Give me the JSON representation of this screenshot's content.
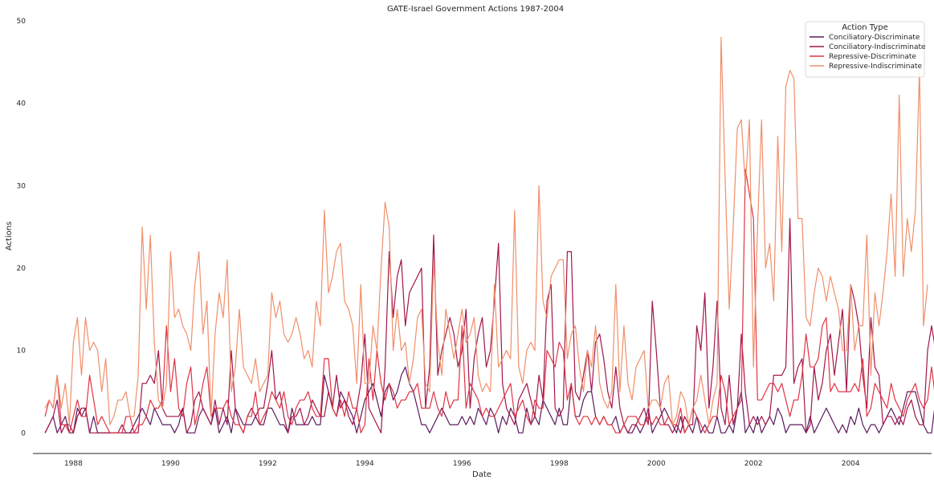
{
  "chart_data": {
    "type": "line",
    "title": "GATE-Israel Government Actions 1987-2004",
    "xlabel": "Date",
    "ylabel": "Actions",
    "x_start": "1987-06",
    "x_end": "2004-12",
    "xlim": [
      "1987-03",
      "2005-09"
    ],
    "ylim": [
      -2.5,
      50
    ],
    "x_ticks": [
      "1988",
      "1990",
      "1992",
      "1994",
      "1996",
      "1998",
      "2000",
      "2002",
      "2004"
    ],
    "y_ticks": [
      0,
      10,
      20,
      30,
      40,
      50
    ],
    "grid": false,
    "legend": {
      "title": "Action Type",
      "placement": "top-right"
    },
    "series": [
      {
        "name": "Conciliatory-Discriminate",
        "color": "#5c1a5e",
        "values": [
          0,
          1,
          2,
          0,
          1,
          2,
          0,
          0,
          3,
          2,
          3,
          0,
          2,
          0,
          0,
          0,
          0,
          0,
          0,
          0,
          0,
          0,
          1,
          2,
          3,
          2,
          1,
          3,
          2,
          1,
          1,
          1,
          0,
          1,
          3,
          0,
          0,
          0,
          2,
          3,
          2,
          1,
          3,
          0,
          1,
          2,
          0,
          3,
          2,
          1,
          1,
          1,
          2,
          1,
          1,
          3,
          3,
          2,
          1,
          1,
          0,
          3,
          1,
          1,
          1,
          1,
          2,
          1,
          1,
          7,
          5,
          3,
          2,
          5,
          4,
          3,
          2,
          0,
          2,
          4,
          5,
          6,
          4,
          2,
          5,
          6,
          4,
          5,
          7,
          8,
          6,
          5,
          3,
          1,
          1,
          0,
          1,
          2,
          3,
          2,
          1,
          1,
          1,
          2,
          1,
          2,
          1,
          3,
          2,
          1,
          3,
          2,
          0,
          2,
          1,
          3,
          2,
          0,
          0,
          3,
          1,
          2,
          1,
          4,
          3,
          2,
          1,
          3,
          1,
          1,
          6,
          2,
          2,
          4,
          5,
          5,
          2,
          1,
          2,
          1,
          1,
          2,
          0,
          1,
          0,
          0,
          1,
          0,
          1,
          3,
          0,
          1,
          2,
          3,
          2,
          1,
          0,
          2,
          0,
          1,
          0,
          2,
          0,
          1,
          0,
          0,
          2,
          0,
          0,
          1,
          0,
          3,
          5,
          0,
          1,
          0,
          2,
          0,
          1,
          2,
          1,
          3,
          2,
          0,
          1,
          1,
          1,
          1,
          0,
          2,
          0,
          1,
          2,
          3,
          2,
          1,
          0,
          1,
          0,
          2,
          1,
          3,
          1,
          0,
          1,
          1,
          0,
          1,
          2,
          3,
          2,
          1,
          3,
          5,
          5,
          5,
          3,
          1,
          0,
          0,
          4,
          1,
          0,
          0,
          0,
          0,
          0,
          0,
          1,
          1,
          1,
          3,
          3,
          2,
          1,
          1,
          1,
          0,
          2,
          2,
          1,
          2,
          1,
          0,
          1,
          2,
          1,
          0,
          0,
          2,
          3,
          2,
          6
        ]
      },
      {
        "name": "Conciliatory-Indiscriminate",
        "color": "#a3154a",
        "values": [
          0,
          1,
          2,
          4,
          0,
          1,
          1,
          0,
          2,
          3,
          3,
          0,
          0,
          0,
          0,
          0,
          0,
          0,
          0,
          1,
          0,
          0,
          0,
          0,
          6,
          6,
          7,
          6,
          10,
          3,
          2,
          2,
          2,
          2,
          3,
          0,
          1,
          4,
          5,
          3,
          2,
          1,
          4,
          1,
          3,
          1,
          10,
          3,
          1,
          0,
          2,
          3,
          2,
          3,
          3,
          6,
          10,
          4,
          5,
          2,
          0,
          2,
          2,
          3,
          1,
          2,
          4,
          3,
          2,
          2,
          5,
          3,
          7,
          3,
          4,
          2,
          1,
          3,
          6,
          12,
          3,
          2,
          1,
          0,
          8,
          22,
          14,
          19,
          21,
          13,
          17,
          18,
          19,
          20,
          3,
          8,
          24,
          7,
          10,
          12,
          14,
          12,
          8,
          10,
          15,
          3,
          9,
          12,
          14,
          8,
          10,
          16,
          23,
          6,
          3,
          2,
          1,
          4,
          5,
          6,
          4,
          2,
          7,
          4,
          16,
          18,
          3,
          2,
          3,
          22,
          22,
          5,
          4,
          7,
          10,
          5,
          11,
          12,
          9,
          5,
          3,
          8,
          3,
          1,
          0,
          1,
          1,
          2,
          3,
          1,
          16,
          10,
          3,
          1,
          1,
          0,
          1,
          0,
          2,
          1,
          1,
          13,
          10,
          17,
          3,
          8,
          16,
          3,
          1,
          7,
          1,
          3,
          12,
          5,
          1,
          2,
          1,
          2,
          1,
          2,
          7,
          7,
          7,
          8,
          26,
          6,
          8,
          9,
          0,
          1,
          8,
          4,
          6,
          10,
          12,
          7,
          11,
          15,
          5,
          18,
          16,
          13,
          7,
          3,
          14,
          8,
          7,
          1,
          2,
          2,
          1,
          2,
          1,
          3,
          4,
          2,
          1,
          1,
          10,
          13,
          10,
          6,
          3,
          1,
          3,
          6,
          3,
          3,
          7,
          4,
          5,
          11,
          5,
          5,
          5,
          3,
          3,
          8,
          10,
          11
        ]
      },
      {
        "name": "Repressive-Discriminate",
        "color": "#e13342",
        "values": [
          2,
          4,
          3,
          7,
          1,
          1,
          0,
          2,
          4,
          2,
          2,
          7,
          4,
          1,
          2,
          1,
          0,
          0,
          0,
          0,
          2,
          2,
          0,
          1,
          1,
          2,
          4,
          3,
          3,
          4,
          13,
          5,
          9,
          3,
          2,
          6,
          8,
          1,
          3,
          6,
          8,
          2,
          3,
          3,
          3,
          4,
          2,
          1,
          1,
          0,
          2,
          2,
          5,
          1,
          2,
          3,
          5,
          4,
          3,
          5,
          2,
          1,
          3,
          4,
          4,
          5,
          3,
          2,
          2,
          9,
          9,
          3,
          2,
          4,
          2,
          5,
          3,
          3,
          0,
          1,
          9,
          4,
          10,
          6,
          4,
          6,
          5,
          3,
          4,
          4,
          5,
          5,
          6,
          3,
          3,
          3,
          5,
          3,
          2,
          5,
          3,
          4,
          4,
          13,
          3,
          6,
          5,
          4,
          2,
          3,
          2,
          2,
          3,
          4,
          5,
          6,
          2,
          3,
          4,
          2,
          1,
          4,
          3,
          3,
          10,
          9,
          8,
          11,
          10,
          4,
          6,
          2,
          1,
          2,
          2,
          1,
          2,
          1,
          2,
          1,
          1,
          0,
          0,
          1,
          2,
          2,
          2,
          1,
          1,
          2,
          1,
          2,
          1,
          1,
          2,
          1,
          1,
          3,
          0,
          1,
          3,
          2,
          1,
          0,
          1,
          2,
          2,
          7,
          5,
          1,
          2,
          3,
          4,
          32,
          29,
          26,
          4,
          4,
          5,
          6,
          6,
          5,
          6,
          4,
          2,
          4,
          4,
          7,
          12,
          8,
          8,
          9,
          13,
          14,
          5,
          6,
          5,
          5,
          5,
          5,
          6,
          5,
          9,
          2,
          3,
          6,
          5,
          4,
          3,
          6,
          4,
          3,
          2,
          4,
          5,
          6,
          4,
          3,
          4,
          8,
          4,
          3,
          5,
          4,
          4,
          3,
          3,
          4,
          4,
          1,
          7
        ]
      },
      {
        "name": "Repressive-Indiscriminate",
        "color": "#f08f6a",
        "values": [
          3,
          4,
          3,
          7,
          3,
          6,
          1,
          11,
          14,
          7,
          14,
          10,
          11,
          10,
          5,
          9,
          1,
          2,
          4,
          4,
          5,
          2,
          2,
          7,
          25,
          15,
          24,
          11,
          4,
          3,
          6,
          22,
          14,
          15,
          13,
          12,
          10,
          18,
          22,
          12,
          16,
          2,
          12,
          17,
          14,
          21,
          5,
          8,
          15,
          8,
          7,
          6,
          9,
          5,
          6,
          7,
          17,
          14,
          16,
          12,
          11,
          12,
          14,
          12,
          9,
          10,
          8,
          16,
          13,
          27,
          17,
          19,
          22,
          23,
          16,
          15,
          13,
          6,
          18,
          6,
          6,
          13,
          10,
          20,
          28,
          25,
          10,
          15,
          10,
          11,
          6,
          9,
          14,
          15,
          6,
          5,
          21,
          11,
          7,
          15,
          12,
          9,
          12,
          15,
          11,
          12,
          14,
          7,
          5,
          6,
          5,
          18,
          8,
          9,
          10,
          9,
          27,
          8,
          6,
          10,
          11,
          10,
          30,
          16,
          14,
          19,
          20,
          21,
          21,
          9,
          12,
          13,
          8,
          5,
          10,
          8,
          13,
          6,
          4,
          3,
          5,
          18,
          5,
          13,
          6,
          4,
          8,
          9,
          10,
          3,
          4,
          4,
          3,
          6,
          7,
          1,
          2,
          5,
          4,
          1,
          3,
          4,
          7,
          4,
          1,
          4,
          6,
          48,
          31,
          15,
          25,
          37,
          38,
          30,
          38,
          8,
          25,
          38,
          20,
          23,
          16,
          36,
          22,
          42,
          44,
          43,
          26,
          26,
          14,
          13,
          17,
          20,
          19,
          16,
          19,
          17,
          15,
          10,
          10,
          18,
          10,
          13,
          13,
          24,
          7,
          17,
          13,
          17,
          22,
          29,
          19,
          41,
          19,
          26,
          22,
          27,
          44,
          13,
          18
        ]
      }
    ]
  }
}
